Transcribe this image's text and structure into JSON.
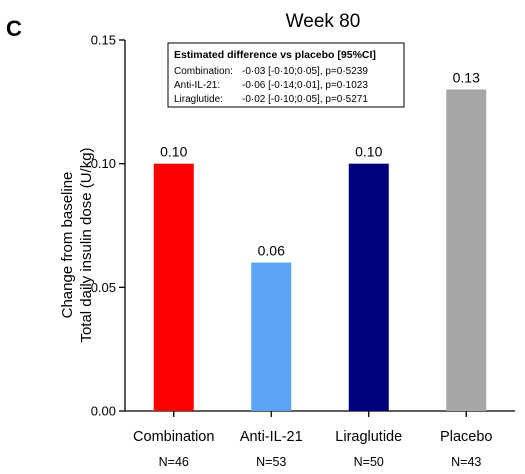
{
  "panel_letter": "C",
  "chart_data": {
    "type": "bar",
    "title": "Week 80",
    "ylabel": [
      "Change from baseline",
      "Total daily insulin dose (U/kg)"
    ],
    "xlabel": "",
    "ylim": [
      0,
      0.15
    ],
    "yticks": [
      "0.00",
      "0.05",
      "0.10",
      "0.15"
    ],
    "ytick_values": [
      0,
      0.05,
      0.1,
      0.15
    ],
    "grid": false,
    "categories": [
      "Combination",
      "Anti-IL-21",
      "Liraglutide",
      "Placebo"
    ],
    "n_labels": [
      "N=46",
      "N=53",
      "N=50",
      "N=43"
    ],
    "values": [
      0.1,
      0.06,
      0.1,
      0.13
    ],
    "data_labels": [
      "0.10",
      "0.06",
      "0.10",
      "0.13"
    ],
    "colors": [
      "#ff0000",
      "#5aa3f5",
      "#00007a",
      "#a6a6a8"
    ],
    "annotation": {
      "title": "Estimated difference vs placebo [95%CI]",
      "rows": [
        {
          "label": "Combination:",
          "text": "-0·03 [-0·10;0·05], p=0·5239"
        },
        {
          "label": "Anti-IL-21:",
          "text": "-0·06 [-0·14;0·01], p=0·1023"
        },
        {
          "label": "Liraglutide:",
          "text": "-0·02 [-0·10;0·05], p=0·5271"
        }
      ]
    }
  }
}
